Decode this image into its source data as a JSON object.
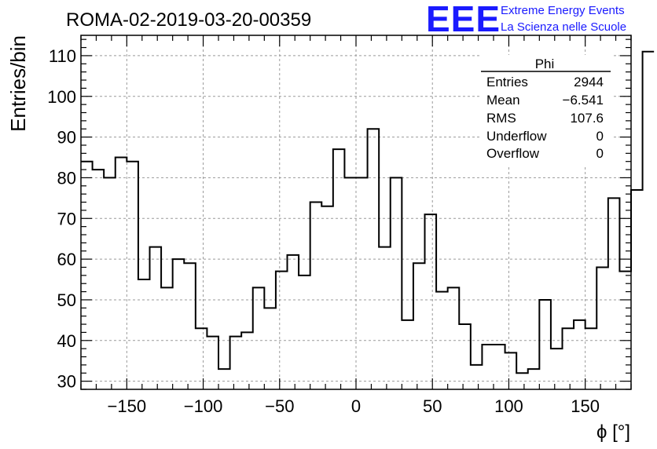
{
  "header": {
    "run_title": "ROMA-02-2019-03-20-00359",
    "logo_text": "EEE",
    "logo_line1": "Extreme Energy Events",
    "logo_line2": "La Scienza nelle Scuole"
  },
  "stats": {
    "title": "Phi",
    "rows": [
      {
        "label": "Entries",
        "value": "2944"
      },
      {
        "label": "Mean",
        "value": "−6.541"
      },
      {
        "label": "RMS",
        "value": "107.6"
      },
      {
        "label": "Underflow",
        "value": "0"
      },
      {
        "label": "Overflow",
        "value": "0"
      }
    ]
  },
  "colors": {
    "logo": "#1a1aff",
    "grid": "#9a9a9a",
    "line": "#000000"
  },
  "chart_data": {
    "type": "histogram",
    "title": "ROMA-02-2019-03-20-00359",
    "xlabel": "ϕ [°]",
    "ylabel": "Entries/bin",
    "xlim": [
      -180,
      180
    ],
    "ylim": [
      28,
      115
    ],
    "bin_edges_start": -180,
    "bin_width": 7.5,
    "values": [
      84,
      82,
      80,
      85,
      84,
      55,
      63,
      53,
      60,
      59,
      43,
      41,
      33,
      41,
      42,
      53,
      48,
      57,
      61,
      56,
      74,
      73,
      87,
      80,
      80,
      92,
      63,
      80,
      45,
      59,
      71,
      52,
      53,
      44,
      34,
      39,
      39,
      37,
      32,
      33,
      50,
      38,
      43,
      45,
      43,
      58,
      75,
      57,
      77,
      111
    ],
    "x_ticks": [
      -150,
      -100,
      -50,
      0,
      50,
      100,
      150
    ],
    "x_tick_labels": [
      "−150",
      "−100",
      "−50",
      "0",
      "50",
      "100",
      "150"
    ],
    "y_ticks": [
      30,
      40,
      50,
      60,
      70,
      80,
      90,
      100,
      110
    ],
    "y_tick_labels": [
      "30",
      "40",
      "50",
      "60",
      "70",
      "80",
      "90",
      "100",
      "110"
    ],
    "grid": true,
    "legend": "top-right"
  }
}
